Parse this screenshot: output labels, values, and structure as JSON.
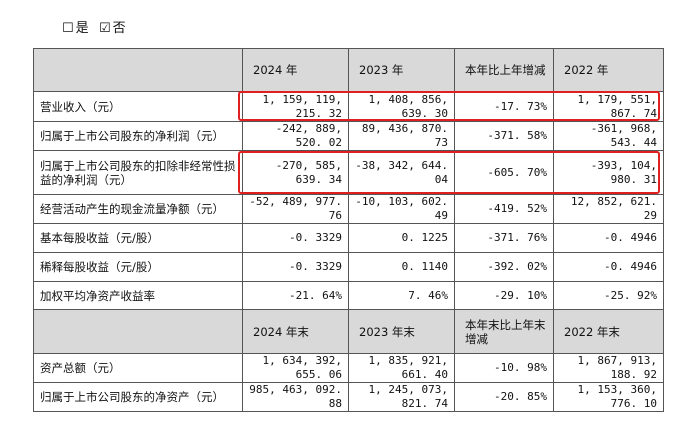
{
  "checkbox_line": {
    "yes_box": "☐",
    "yes_label": "是",
    "no_box": "☑",
    "no_label": "否"
  },
  "header1": [
    "",
    "2024 年",
    "2023 年",
    "本年比上年增减",
    "2022 年"
  ],
  "rows1": [
    {
      "label": "营业收入（元）",
      "v2024": "1, 159, 119, 215. 32",
      "v2023": "1, 408, 856, 639. 30",
      "change": "-17. 73%",
      "v2022": "1, 179, 551, 867. 74"
    },
    {
      "label": "归属于上市公司股东的净利润（元）",
      "v2024": "-242, 889, 520. 02",
      "v2023": "89, 436, 870. 73",
      "change": "-371. 58%",
      "v2022": "-361, 968, 543. 44"
    },
    {
      "label": "归属于上市公司股东的扣除非经常性损益的净利润（元）",
      "v2024": "-270, 585, 639. 34",
      "v2023": "-38, 342, 644. 04",
      "change": "-605. 70%",
      "v2022": "-393, 104, 980. 31"
    },
    {
      "label": "经营活动产生的现金流量净额（元）",
      "v2024": "-52, 489, 977. 76",
      "v2023": "-10, 103, 602. 49",
      "change": "-419. 52%",
      "v2022": "12, 852, 621. 29"
    },
    {
      "label": "基本每股收益（元/股）",
      "v2024": "-0. 3329",
      "v2023": "0. 1225",
      "change": "-371. 76%",
      "v2022": "-0. 4946"
    },
    {
      "label": "稀释每股收益（元/股）",
      "v2024": "-0. 3329",
      "v2023": "0. 1140",
      "change": "-392. 02%",
      "v2022": "-0. 4946"
    },
    {
      "label": "加权平均净资产收益率",
      "v2024": "-21. 64%",
      "v2023": "7. 46%",
      "change": "-29. 10%",
      "v2022": "-25. 92%"
    }
  ],
  "header2": [
    "",
    "2024 年末",
    "2023 年末",
    "本年末比上年末增减",
    "2022 年末"
  ],
  "rows2": [
    {
      "label": "资产总额（元）",
      "v2024": "1, 634, 392, 655. 06",
      "v2023": "1, 835, 921, 661. 40",
      "change": "-10. 98%",
      "v2022": "1, 867, 913, 188. 92"
    },
    {
      "label": "归属于上市公司股东的净资产（元）",
      "v2024": "985, 463, 092. 88",
      "v2023": "1, 245, 073, 821. 74",
      "change": "-20. 85%",
      "v2022": "1, 153, 360, 776. 10"
    }
  ]
}
